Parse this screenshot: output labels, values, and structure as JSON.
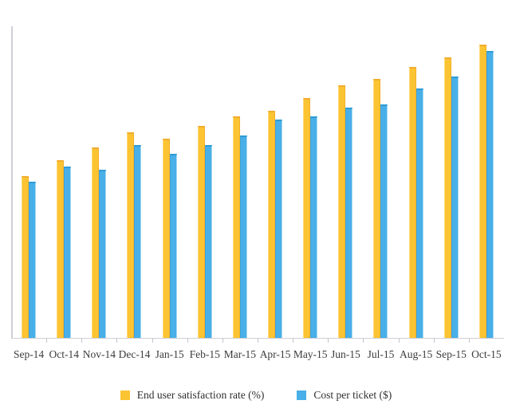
{
  "chart_data": {
    "type": "bar",
    "title": "",
    "xlabel": "",
    "ylabel": "",
    "categories": [
      "Sep-14",
      "Oct-14",
      "Nov-14",
      "Dec-14",
      "Jan-15",
      "Feb-15",
      "Mar-15",
      "Apr-15",
      "May-15",
      "Jun-15",
      "Jul-15",
      "Aug-15",
      "Sep-15",
      "Oct-15"
    ],
    "series": [
      {
        "name": "End user satisfaction rate (%)",
        "color": "#fcc432",
        "values": [
          52,
          57,
          61,
          66,
          64,
          68,
          71,
          73,
          77,
          81,
          83,
          87,
          90,
          94
        ]
      },
      {
        "name": "Cost per ticket ($)",
        "color": "#48afe8",
        "values": [
          50,
          55,
          54,
          62,
          59,
          62,
          65,
          70,
          71,
          74,
          75,
          80,
          84,
          92
        ]
      }
    ],
    "ylim": [
      0,
      100
    ],
    "y_axis_labels_visible": false,
    "grid": false,
    "legend_position": "bottom"
  },
  "colors": {
    "axis": "#cfcfd6",
    "tick": "#c6c6cc",
    "label_text": "#3b3b3b",
    "background": "#ffffff"
  }
}
